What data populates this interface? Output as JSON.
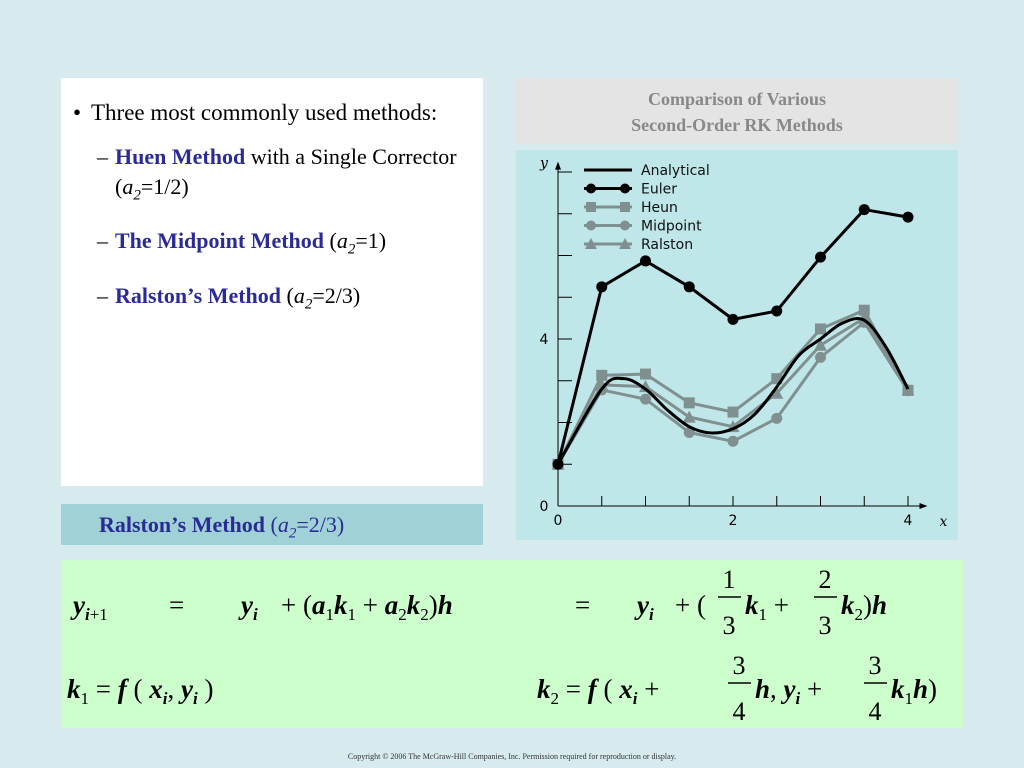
{
  "bullets": {
    "main": "Three most commonly used methods:",
    "items": [
      {
        "bold": "Huen Method",
        "rest": " with a Single Corrector (",
        "var": "a",
        "sub": "2",
        "val": "=1/2)"
      },
      {
        "bold": "The Midpoint Method",
        "rest": " (",
        "var": "a",
        "sub": "2",
        "val": "=1)"
      },
      {
        "bold": "Ralston’s Method",
        "rest": " (",
        "var": "a",
        "sub": "2",
        "val": "=2/3)"
      }
    ]
  },
  "caption": {
    "line1": "Comparison of Various",
    "line2": "Second-Order RK Methods"
  },
  "chart_data": {
    "type": "line",
    "xlabel": "x",
    "ylabel": "y",
    "xlim": [
      0,
      4.2
    ],
    "ylim": [
      0,
      8.2
    ],
    "xticks": [
      "0",
      "2",
      "4"
    ],
    "yticks": [
      "0",
      "4"
    ],
    "legend_position": "top-left",
    "series": [
      {
        "name": "Analytical",
        "marker": "none",
        "color": "#000000",
        "x": [
          0,
          0.5,
          0.75,
          1.0,
          1.25,
          1.5,
          1.75,
          2.0,
          2.25,
          2.5,
          2.75,
          3.0,
          3.25,
          3.5,
          3.75,
          4.0
        ],
        "y": [
          1.0,
          2.8,
          3.05,
          2.8,
          2.3,
          1.9,
          1.75,
          1.85,
          2.2,
          2.85,
          3.6,
          4.0,
          4.38,
          4.45,
          3.8,
          2.8
        ]
      },
      {
        "name": "Euler",
        "marker": "circle",
        "color": "#000000",
        "x": [
          0,
          0.5,
          1.0,
          1.5,
          2.0,
          2.5,
          3.0,
          3.5,
          4.0
        ],
        "y": [
          1.0,
          5.25,
          5.87,
          5.25,
          4.47,
          4.67,
          5.96,
          7.1,
          6.92
        ]
      },
      {
        "name": "Heun",
        "marker": "square",
        "color": "#808f8f",
        "x": [
          0,
          0.5,
          1.0,
          1.5,
          2.0,
          2.5,
          3.0,
          3.5,
          4.0
        ],
        "y": [
          1.0,
          3.13,
          3.16,
          2.47,
          2.25,
          3.05,
          4.24,
          4.69,
          2.77
        ]
      },
      {
        "name": "Midpoint",
        "marker": "circle",
        "color": "#808f8f",
        "x": [
          0,
          0.5,
          1.0,
          1.5,
          2.0,
          2.5,
          3.0,
          3.5,
          4.0
        ],
        "y": [
          1.0,
          2.78,
          2.56,
          1.76,
          1.55,
          2.1,
          3.56,
          4.4,
          2.76
        ]
      },
      {
        "name": "Ralston",
        "marker": "triangle",
        "color": "#808f8f",
        "x": [
          0,
          0.5,
          1.0,
          1.5,
          2.0,
          2.5,
          3.0,
          3.5,
          4.0
        ],
        "y": [
          1.0,
          2.9,
          2.86,
          2.13,
          1.9,
          2.7,
          3.85,
          4.5,
          2.78
        ]
      }
    ]
  },
  "ralston_bar": {
    "bold": "Ralston’s Method",
    "rest": " (",
    "var": "a",
    "sub": "2",
    "val": "=2/3)"
  },
  "copyright": "Copyright © 2006 The McGraw-Hill Companies, Inc.  Permission required for reproduction or display."
}
